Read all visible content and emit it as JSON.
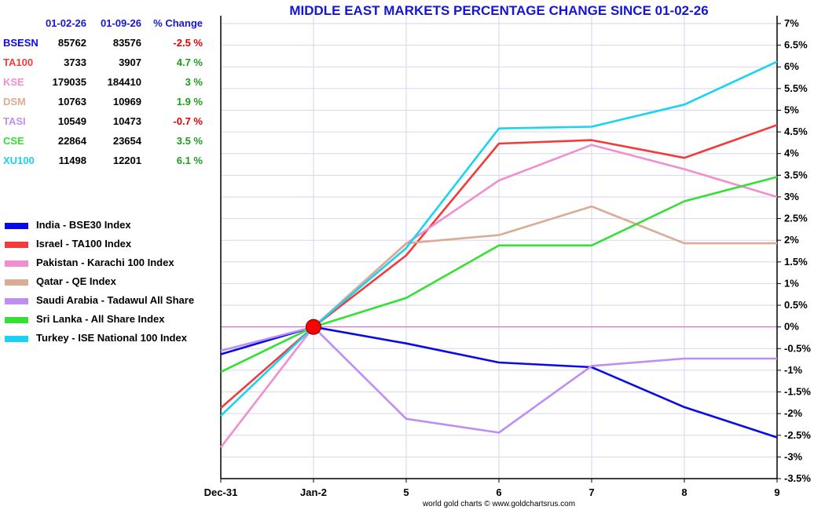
{
  "chart_data": {
    "type": "line",
    "title": "MIDDLE EAST MARKETS PERCENTAGE CHANGE SINCE 01-02-26",
    "categories": [
      "Dec-31",
      "Jan-2",
      "5",
      "6",
      "7",
      "8",
      "9"
    ],
    "y_ticks": [
      "-3.5%",
      "-3%",
      "-2.5%",
      "-2%",
      "-1.5%",
      "-1%",
      "-0.5%",
      "0%",
      "0.5%",
      "1%",
      "1.5%",
      "2%",
      "2.5%",
      "3%",
      "3.5%",
      "4%",
      "4.5%",
      "5%",
      "5.5%",
      "6%",
      "6.5%",
      "7%"
    ],
    "ylim": [
      -3.5,
      7
    ],
    "grid": true,
    "series": [
      {
        "name": "India - BSE30 Index",
        "color": "#0a0ae6",
        "values": [
          -0.63,
          0,
          -0.38,
          -0.82,
          -0.93,
          -1.85,
          -2.55
        ]
      },
      {
        "name": "Israel - TA100 Index",
        "color": "#f23b3b",
        "values": [
          -1.87,
          0,
          1.65,
          4.23,
          4.31,
          3.9,
          4.66
        ]
      },
      {
        "name": "Pakistan - Karachi 100 Index",
        "color": "#f08fcf",
        "values": [
          -2.78,
          0,
          1.92,
          3.38,
          4.2,
          3.64,
          3.0
        ]
      },
      {
        "name": "Qatar - QE Index",
        "color": "#d9ad94",
        "values": [
          null,
          0,
          1.93,
          2.12,
          2.78,
          1.93,
          1.93
        ]
      },
      {
        "name": "Saudi Arabia - Tadawul All Share",
        "color": "#bd8ff2",
        "values": [
          -0.55,
          0,
          -2.12,
          -2.44,
          -0.9,
          -0.73,
          -0.73
        ]
      },
      {
        "name": "Sri Lanka - All Share Index",
        "color": "#33e033",
        "values": [
          -1.04,
          0,
          0.67,
          1.88,
          1.88,
          2.9,
          3.46
        ]
      },
      {
        "name": "Turkey - ISE National 100 Index",
        "color": "#1ad2f2",
        "values": [
          -2.05,
          0,
          1.82,
          4.58,
          4.62,
          5.13,
          6.12
        ]
      }
    ],
    "marker": {
      "category": "Jan-2",
      "value": 0,
      "color": "#ff0000"
    }
  },
  "table": {
    "headers": [
      "",
      "01-02-26",
      "01-09-26",
      "% Change"
    ],
    "rows": [
      {
        "name": "BSESN",
        "start": "85762",
        "end": "83576",
        "change": "-2.5 %",
        "color": "#0a0ae6",
        "change_color": "#e60000"
      },
      {
        "name": "TA100",
        "start": "3733",
        "end": "3907",
        "change": "4.7 %",
        "color": "#f23b3b",
        "change_color": "#1a9e1a"
      },
      {
        "name": "KSE",
        "start": "179035",
        "end": "184410",
        "change": "3 %",
        "color": "#f08fcf",
        "change_color": "#1a9e1a"
      },
      {
        "name": "DSM",
        "start": "10763",
        "end": "10969",
        "change": "1.9 %",
        "color": "#d9ad94",
        "change_color": "#1a9e1a"
      },
      {
        "name": "TASI",
        "start": "10549",
        "end": "10473",
        "change": "-0.7 %",
        "color": "#bd8ff2",
        "change_color": "#e60000"
      },
      {
        "name": "CSE",
        "start": "22864",
        "end": "23654",
        "change": "3.5 %",
        "color": "#33e033",
        "change_color": "#1a9e1a"
      },
      {
        "name": "XU100",
        "start": "11498",
        "end": "12201",
        "change": "6.1 %",
        "color": "#1ad2f2",
        "change_color": "#1a9e1a"
      }
    ]
  },
  "footer": "world gold charts © www.goldchartsrus.com"
}
